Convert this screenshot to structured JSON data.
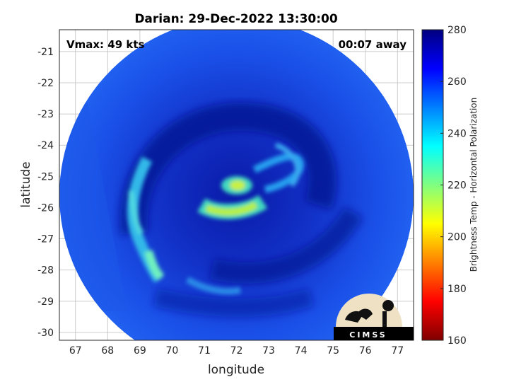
{
  "chart_data": {
    "type": "heatmap",
    "title": "Darian: 29-Dec-2022 13:30:00",
    "xlabel": "longitude",
    "ylabel": "latitude",
    "xlim": [
      66.5,
      77.5
    ],
    "ylim": [
      -30.25,
      -20.3
    ],
    "xticks": [
      "67",
      "68",
      "69",
      "70",
      "71",
      "72",
      "73",
      "74",
      "75",
      "76",
      "77"
    ],
    "yticks": [
      "-21",
      "-22",
      "-23",
      "-24",
      "-25",
      "-26",
      "-27",
      "-28",
      "-29",
      "-30"
    ],
    "grid": true,
    "annotations": {
      "vmax": "Vmax: 49 kts",
      "time_away": "00:07 away"
    },
    "storm_center": {
      "lon": 72.0,
      "lat": -25.6
    },
    "swath_radius_deg": 5.5,
    "colorbar": {
      "label": "Brightness Temp - Horizontal Polarization",
      "range": [
        160,
        280
      ],
      "ticks": [
        "160",
        "180",
        "200",
        "220",
        "240",
        "260",
        "280"
      ],
      "colormap": "jet"
    },
    "background_value": 255,
    "features": [
      {
        "name": "eye-wall-upper",
        "lon": 72.0,
        "lat": -25.15,
        "value": 222
      },
      {
        "name": "eye-wall-lower",
        "lon": 71.8,
        "lat": -26.05,
        "value": 218
      },
      {
        "name": "outer-band",
        "lon": 69.4,
        "lat": -27.6,
        "value": 228
      }
    ]
  },
  "logo": {
    "text": "CIMSS"
  }
}
